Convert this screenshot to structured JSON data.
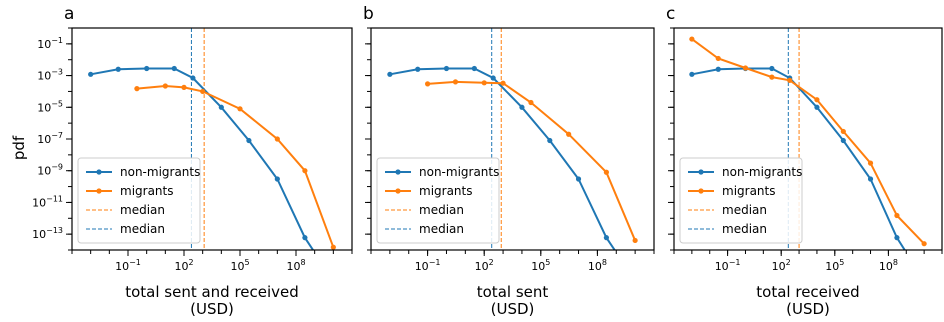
{
  "figure": {
    "ylabel": "pdf"
  },
  "colors": {
    "non_migrants": "#1f77b4",
    "migrants": "#ff7f0e"
  },
  "chart_data": [
    {
      "panel": "a",
      "type": "line",
      "xscale": "log",
      "yscale": "log",
      "xlabel": [
        "total sent and received",
        "(USD)"
      ],
      "ylabel": "pdf",
      "xlim": [
        0.0001,
        100000000000.0
      ],
      "ylim": [
        1e-14,
        1.0
      ],
      "x_ticks": [
        "10^-1",
        "10^2",
        "10^5",
        "10^8"
      ],
      "y_ticks": [
        "10^-1",
        "10^-3",
        "10^-5",
        "10^-7",
        "10^-9",
        "10^-11",
        "10^-13"
      ],
      "series": [
        {
          "name": "non-migrants",
          "color": "#1f77b4",
          "x": [
            0.001,
            0.03,
            1,
            30,
            300,
            10000,
            300000,
            10000000,
            300000000,
            5000000000
          ],
          "y": [
            0.0012,
            0.0025,
            0.0028,
            0.0028,
            0.0007,
            1e-05,
            8e-08,
            3e-10,
            6e-14,
            4e-16
          ]
        },
        {
          "name": "migrants",
          "color": "#ff7f0e",
          "x": [
            0.3,
            10,
            100,
            1000,
            100000,
            10000000,
            300000000,
            10000000000
          ],
          "y": [
            0.00015,
            0.00022,
            0.00018,
            0.0001,
            8e-06,
            1e-07,
            1e-09,
            1.5e-14
          ]
        }
      ],
      "medians": [
        {
          "name": "median",
          "color": "#ff7f0e",
          "x": 1200
        },
        {
          "name": "median",
          "color": "#1f77b4",
          "x": 250
        }
      ],
      "legend": {
        "placement": "lower-left",
        "entries": [
          "non-migrants",
          "migrants",
          "median",
          "median"
        ]
      }
    },
    {
      "panel": "b",
      "type": "line",
      "xscale": "log",
      "yscale": "log",
      "xlabel": [
        "total sent",
        "(USD)"
      ],
      "ylabel": "pdf",
      "xlim": [
        0.0001,
        100000000000.0
      ],
      "ylim": [
        1e-14,
        1.0
      ],
      "x_ticks": [
        "10^-1",
        "10^2",
        "10^5",
        "10^8"
      ],
      "y_ticks": [
        "10^-1",
        "10^-3",
        "10^-5",
        "10^-7",
        "10^-9",
        "10^-11",
        "10^-13"
      ],
      "series": [
        {
          "name": "non-migrants",
          "color": "#1f77b4",
          "x": [
            0.001,
            0.03,
            1,
            30,
            300,
            10000,
            300000,
            10000000,
            300000000,
            5000000000
          ],
          "y": [
            0.0012,
            0.0025,
            0.0028,
            0.0028,
            0.0007,
            1e-05,
            8e-08,
            3e-10,
            6e-14,
            4e-16
          ]
        },
        {
          "name": "migrants",
          "color": "#ff7f0e",
          "x": [
            0.1,
            3,
            100,
            1000,
            30000,
            3000000,
            300000000,
            10000000000
          ],
          "y": [
            0.0003,
            0.0004,
            0.00035,
            0.00033,
            2e-05,
            2e-07,
            8e-10,
            4e-14
          ]
        }
      ],
      "medians": [
        {
          "name": "median",
          "color": "#ff7f0e",
          "x": 800
        },
        {
          "name": "median",
          "color": "#1f77b4",
          "x": 250
        }
      ],
      "legend": {
        "placement": "lower-left",
        "entries": [
          "non-migrants",
          "migrants",
          "median",
          "median"
        ]
      }
    },
    {
      "panel": "c",
      "type": "line",
      "xscale": "log",
      "yscale": "log",
      "xlabel": [
        "total received",
        "(USD)"
      ],
      "ylabel": "pdf",
      "xlim": [
        0.0001,
        100000000000.0
      ],
      "ylim": [
        1e-14,
        1.0
      ],
      "x_ticks": [
        "10^-1",
        "10^2",
        "10^5",
        "10^8"
      ],
      "y_ticks": [
        "10^-1",
        "10^-3",
        "10^-5",
        "10^-7",
        "10^-9",
        "10^-11",
        "10^-13"
      ],
      "series": [
        {
          "name": "non-migrants",
          "color": "#1f77b4",
          "x": [
            0.001,
            0.03,
            1,
            30,
            300,
            10000,
            300000,
            10000000,
            300000000,
            5000000000
          ],
          "y": [
            0.0012,
            0.0025,
            0.0028,
            0.0028,
            0.0007,
            1e-05,
            8e-08,
            3e-10,
            6e-14,
            4e-16
          ]
        },
        {
          "name": "migrants",
          "color": "#ff7f0e",
          "x": [
            0.001,
            0.03,
            1,
            30,
            300,
            10000,
            300000,
            10000000,
            300000000,
            10000000000
          ],
          "y": [
            0.2,
            0.012,
            0.003,
            0.0008,
            0.0005,
            3e-05,
            3e-07,
            3e-09,
            1.5e-12,
            2.5e-14
          ]
        }
      ],
      "medians": [
        {
          "name": "median",
          "color": "#ff7f0e",
          "x": 1000
        },
        {
          "name": "median",
          "color": "#1f77b4",
          "x": 250
        }
      ],
      "legend": {
        "placement": "lower-left",
        "entries": [
          "non-migrants",
          "migrants",
          "median",
          "median"
        ]
      }
    }
  ]
}
